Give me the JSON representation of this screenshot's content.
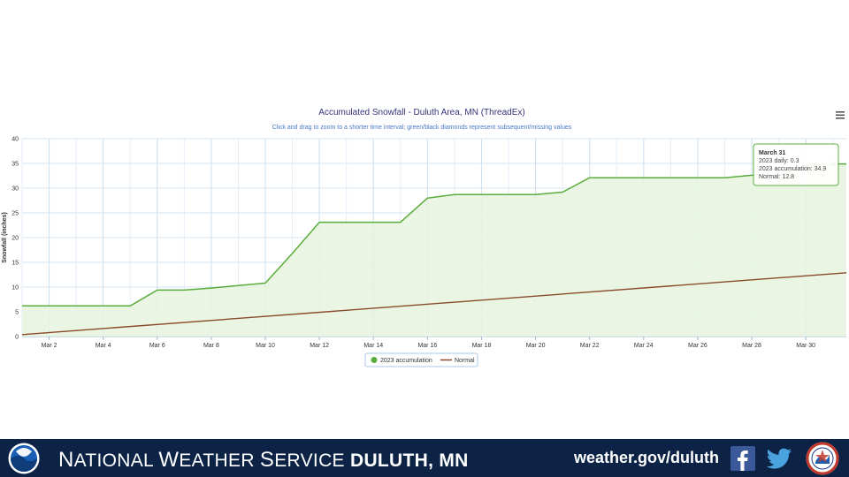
{
  "chart_data": {
    "type": "area",
    "title": "Accumulated Snowfall - Duluth Area, MN (ThreadEx)",
    "subtitle": "Click and drag to zoom to a shorter time interval; green/black diamonds represent subsequent/missing values",
    "ylabel": "Snowfall (inches)",
    "xlabel": "",
    "ylim": [
      0,
      40
    ],
    "xlim": [
      1,
      31.5
    ],
    "yticks": [
      0,
      5,
      10,
      15,
      20,
      25,
      30,
      35,
      40
    ],
    "xticks": [
      {
        "x": 2,
        "label": "Mar 2"
      },
      {
        "x": 4,
        "label": "Mar 4"
      },
      {
        "x": 6,
        "label": "Mar 6"
      },
      {
        "x": 8,
        "label": "Mar 8"
      },
      {
        "x": 10,
        "label": "Mar 10"
      },
      {
        "x": 12,
        "label": "Mar 12"
      },
      {
        "x": 14,
        "label": "Mar 14"
      },
      {
        "x": 16,
        "label": "Mar 16"
      },
      {
        "x": 18,
        "label": "Mar 18"
      },
      {
        "x": 20,
        "label": "Mar 20"
      },
      {
        "x": 22,
        "label": "Mar 22"
      },
      {
        "x": 24,
        "label": "Mar 24"
      },
      {
        "x": 26,
        "label": "Mar 26"
      },
      {
        "x": 28,
        "label": "Mar 28"
      },
      {
        "x": 30,
        "label": "Mar 30"
      }
    ],
    "grid": true,
    "legend_position": "bottom-center",
    "series": [
      {
        "name": "2023 accumulation",
        "color": "#5aac3c",
        "fill": "#e6f4de",
        "style": "area",
        "x": [
          1,
          2,
          3,
          4,
          5,
          6,
          7,
          8,
          9,
          10,
          11,
          12,
          13,
          14,
          15,
          16,
          17,
          18,
          19,
          20,
          21,
          22,
          23,
          24,
          25,
          26,
          27,
          28,
          29,
          30,
          31
        ],
        "y": [
          6.2,
          6.2,
          6.2,
          6.2,
          6.2,
          9.4,
          9.4,
          9.8,
          10.3,
          10.8,
          16.8,
          23.1,
          23.1,
          23.1,
          23.1,
          28.0,
          28.7,
          28.7,
          28.7,
          28.7,
          29.2,
          32.1,
          32.1,
          32.1,
          32.1,
          32.1,
          32.1,
          32.6,
          32.6,
          34.6,
          34.9
        ]
      },
      {
        "name": "Normal",
        "color": "#8b4a2b",
        "style": "line",
        "x": [
          1,
          31.5
        ],
        "y": [
          0.4,
          12.9
        ]
      }
    ],
    "tooltip": {
      "title": "March 31",
      "lines": [
        "2023 daily: 0.3",
        "2023 accumulation: 34.9",
        "Normal: 12.8"
      ]
    }
  },
  "menu_icon": "hamburger-menu-icon",
  "footer": {
    "background": "#0c2346",
    "title_part1_initial": "N",
    "title_part1_rest": "ATIONAL ",
    "title_part2_initial": "W",
    "title_part2_rest": "EATHER ",
    "title_part3_initial": "S",
    "title_part3_rest": "ERVICE ",
    "title_location": "DULUTH, MN",
    "url": "weather.gov/duluth",
    "noaa_icon": "noaa-logo-icon",
    "facebook_icon": "facebook-icon",
    "twitter_icon": "twitter-icon",
    "nws_icon": "nws-logo-icon"
  }
}
